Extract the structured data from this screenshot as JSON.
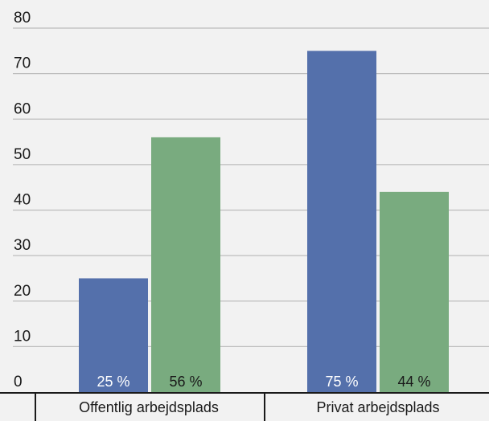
{
  "chart_data": {
    "type": "bar",
    "categories": [
      "Offentlig arbejdsplads",
      "Privat arbejdsplads"
    ],
    "series": [
      {
        "values": [
          25,
          75
        ],
        "labels": [
          "25 %",
          "75 %"
        ],
        "color": "#5470ab",
        "label_color": "#ffffff"
      },
      {
        "values": [
          56,
          44
        ],
        "labels": [
          "56 %",
          "44 %"
        ],
        "color": "#79ab7f",
        "label_color": "#1a1a1a"
      }
    ],
    "ylim": [
      0,
      80
    ],
    "yticks": [
      "0",
      "10",
      "20",
      "30",
      "40",
      "50",
      "60",
      "70",
      "80"
    ],
    "grid": true,
    "colors": {
      "background": "#f2f2f2",
      "grid": "#bdbdbd",
      "axis": "#1a1a1a"
    }
  }
}
